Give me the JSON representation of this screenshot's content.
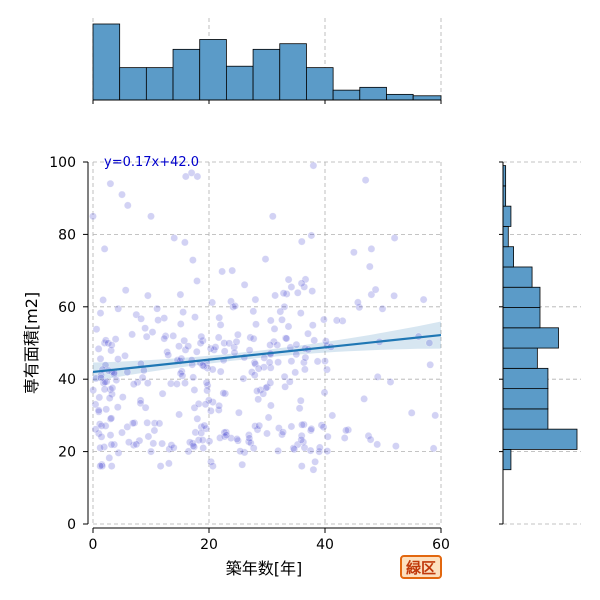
{
  "chart_data": {
    "type": "scatter",
    "xlabel": "築年数[年]",
    "ylabel": "専有面積[m2]",
    "xlim": [
      0,
      60
    ],
    "ylim": [
      0,
      100
    ],
    "xticks": [
      0,
      20,
      40,
      60
    ],
    "yticks": [
      0,
      20,
      40,
      60,
      80,
      100
    ],
    "grid": true,
    "point_color": "#3333cc",
    "line_color": "#1f77b4",
    "hist_color": "#5b9bc8",
    "regression": {
      "label": "y=0.17x+42.0",
      "slope": 0.17,
      "intercept": 42.0,
      "color": "#1f77b4"
    },
    "sample_points": [
      [
        0,
        85
      ],
      [
        2,
        76
      ],
      [
        2,
        50
      ],
      [
        3,
        94
      ],
      [
        5,
        91
      ],
      [
        6,
        88
      ],
      [
        10,
        85
      ],
      [
        14,
        79
      ],
      [
        16,
        96
      ],
      [
        17,
        97
      ],
      [
        18,
        96
      ],
      [
        24,
        70
      ],
      [
        31,
        85
      ],
      [
        36,
        78
      ],
      [
        38,
        99
      ],
      [
        47,
        95
      ],
      [
        48,
        76
      ],
      [
        52,
        79
      ],
      [
        57,
        62
      ],
      [
        58,
        50
      ],
      [
        59,
        30
      ],
      [
        36,
        16
      ],
      [
        38,
        15
      ],
      [
        1,
        31
      ],
      [
        1,
        25
      ],
      [
        8,
        23
      ],
      [
        10,
        20
      ],
      [
        19,
        21
      ],
      [
        25,
        23
      ],
      [
        30,
        25
      ],
      [
        39,
        20
      ],
      [
        44,
        26
      ],
      [
        49,
        22
      ],
      [
        15,
        45
      ],
      [
        22,
        55
      ],
      [
        28,
        62
      ],
      [
        33,
        60
      ],
      [
        27,
        48
      ],
      [
        12,
        36
      ],
      [
        40,
        45
      ]
    ],
    "top_histogram": {
      "bin_edges": [
        0,
        4.6,
        9.2,
        13.8,
        18.4,
        23,
        27.6,
        32.2,
        36.8,
        41.4,
        46,
        50.6,
        55.2,
        60
      ],
      "counts": [
        54,
        23,
        23,
        36,
        43,
        24,
        36,
        40,
        23,
        7,
        9,
        4,
        3
      ]
    },
    "right_histogram": {
      "bin_edges": [
        15,
        20.6,
        26.2,
        31.8,
        37.4,
        43,
        48.6,
        54.2,
        59.8,
        65.4,
        71,
        76.6,
        82.2,
        87.8,
        93.4,
        99
      ],
      "counts": [
        3,
        28,
        17,
        17,
        17,
        13,
        21,
        14,
        14,
        11,
        4,
        2,
        3,
        1,
        1
      ]
    },
    "badge": "緑区"
  }
}
